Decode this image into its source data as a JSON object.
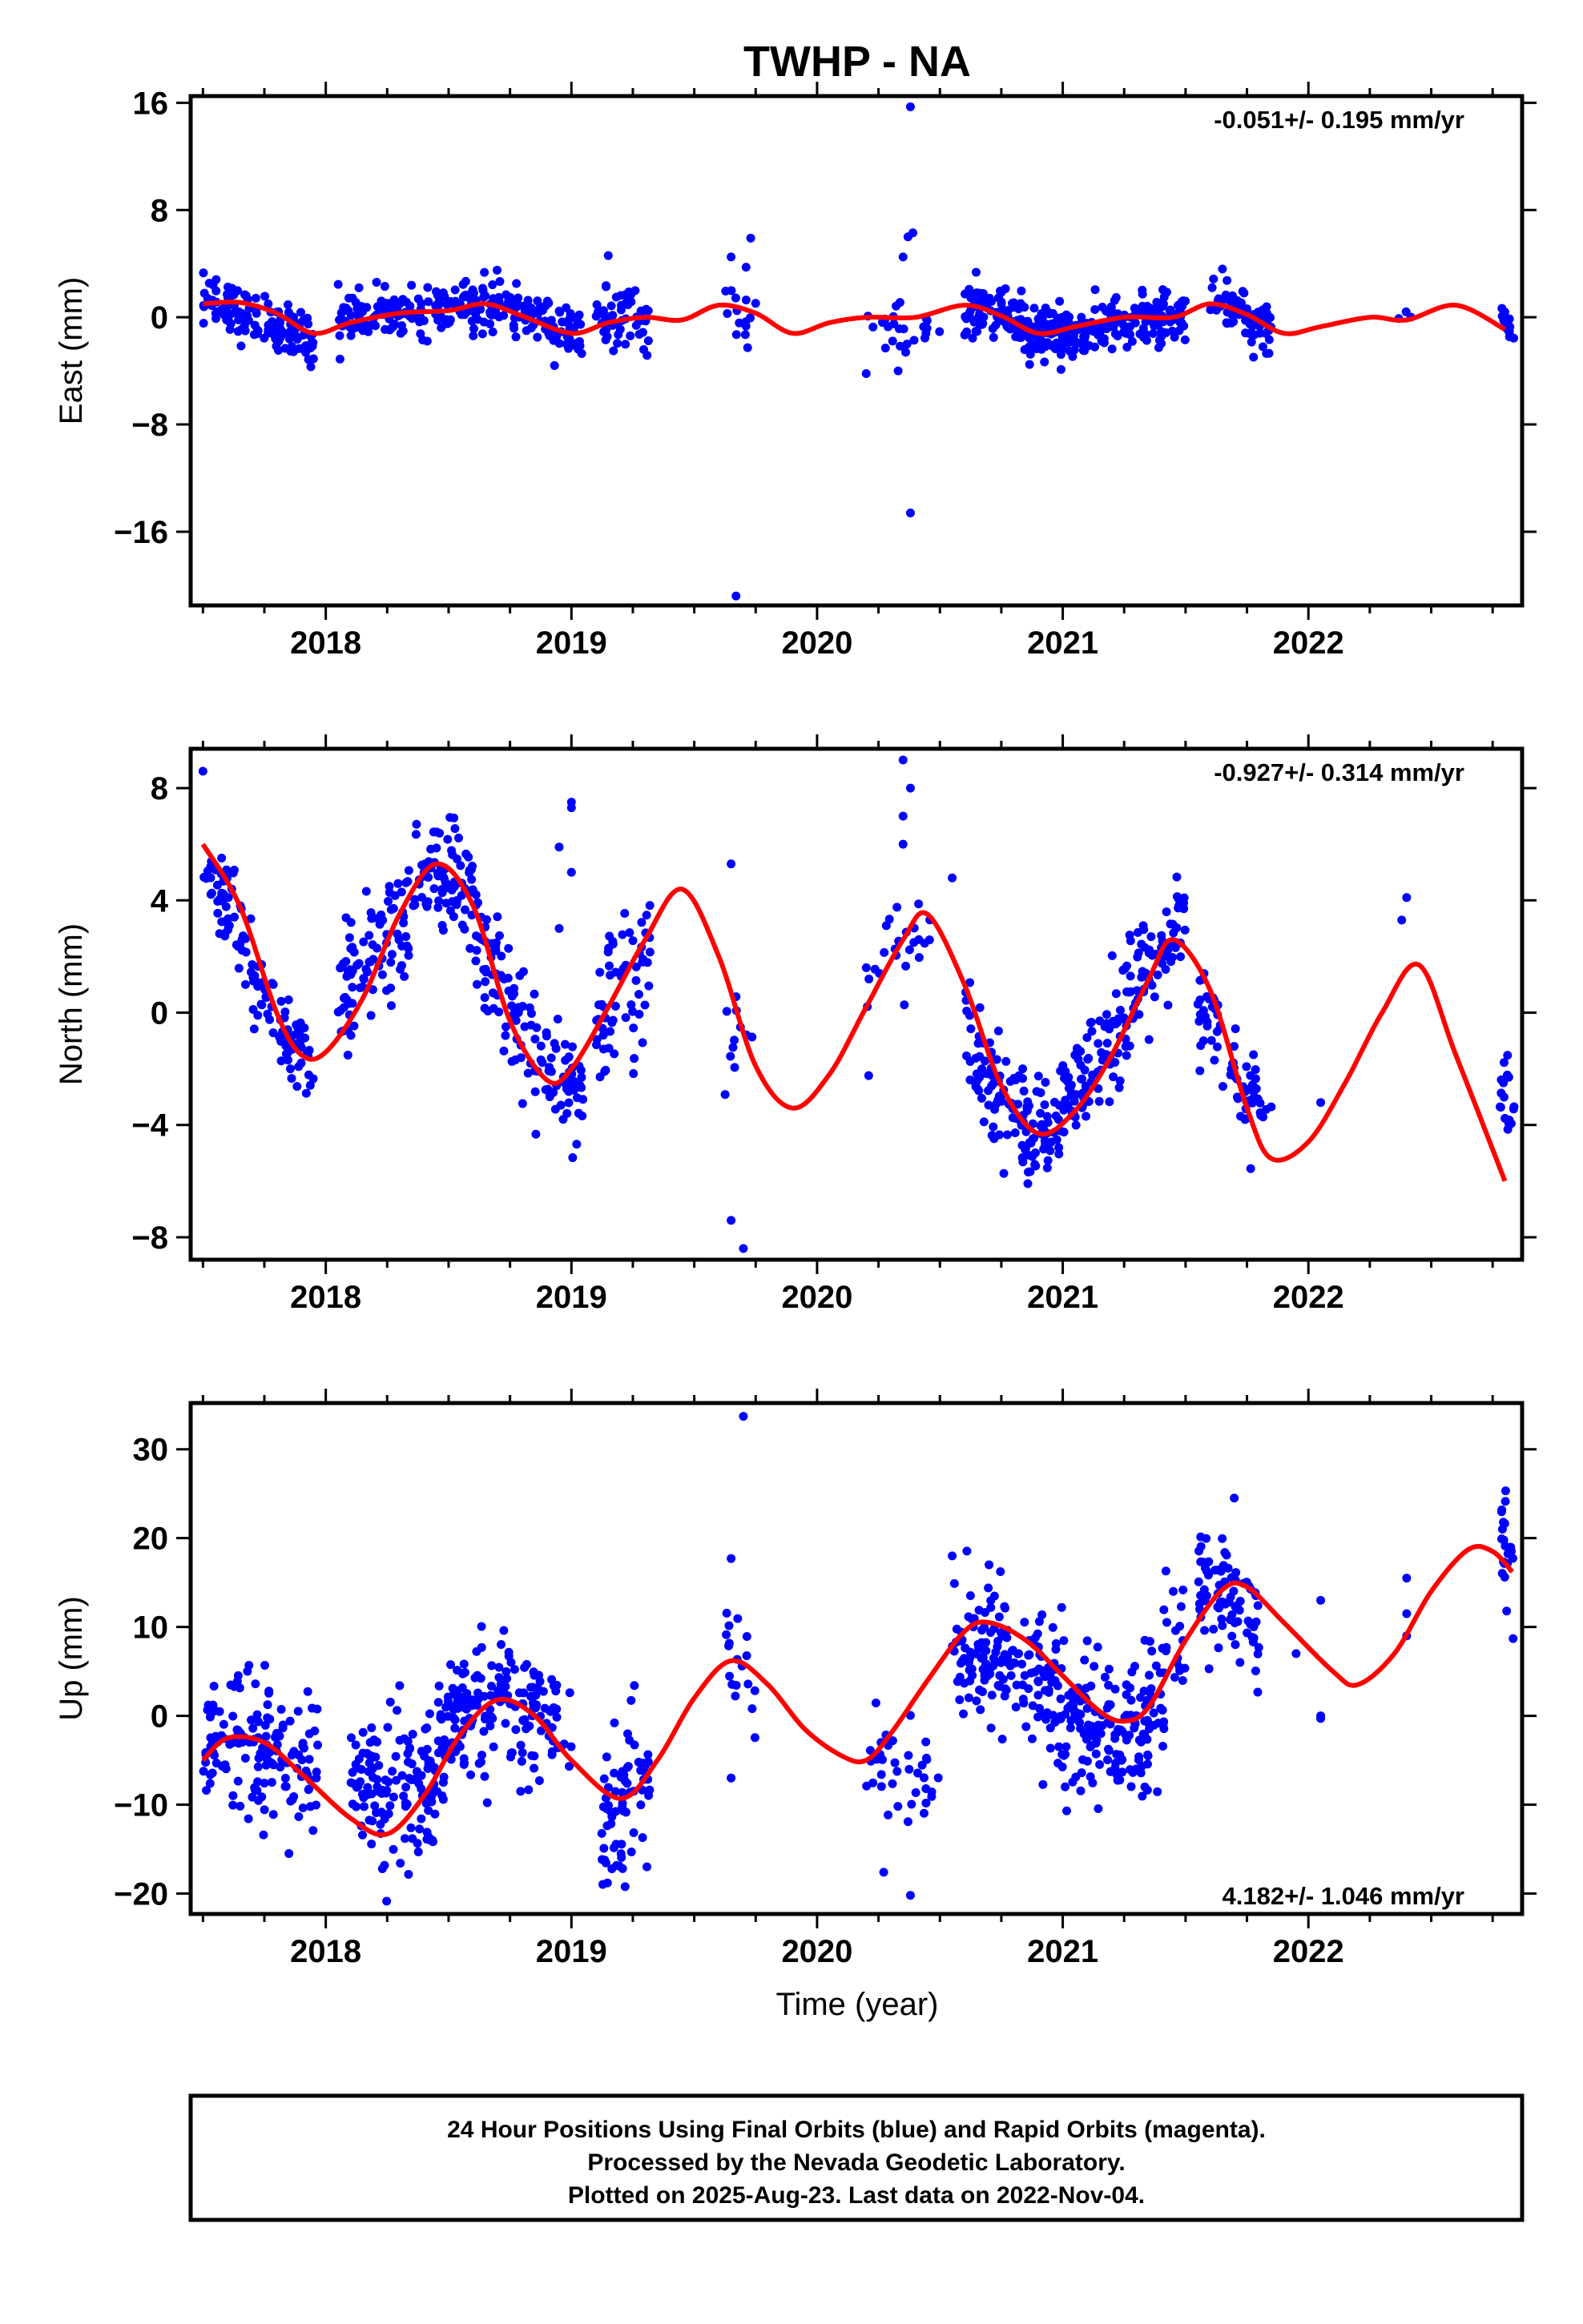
{
  "title": "TWHP - NA",
  "xlabel": "Time (year)",
  "x_ticks": [
    "2018",
    "2019",
    "2020",
    "2021",
    "2022"
  ],
  "footer": {
    "line1": "24 Hour Positions Using Final Orbits (blue) and Rapid Orbits (magenta).",
    "line2": "Processed by the Nevada Geodetic Laboratory.",
    "line3": "Plotted on 2025-Aug-23. Last data on 2022-Nov-04."
  },
  "colors": {
    "points": "#0000ff",
    "fit": "#ff0000",
    "frame": "#000000"
  },
  "chart_data": [
    {
      "type": "scatter",
      "ylabel": "East (mm)",
      "rate_text": "-0.051+/- 0.195 mm/yr",
      "xlim": [
        2017.45,
        2022.87
      ],
      "ylim": [
        -21.5,
        16.5
      ],
      "yticks": [
        16,
        8,
        0,
        -8,
        -16
      ],
      "ytick_labels": [
        "16",
        "8",
        "0",
        "−8",
        "−16"
      ],
      "fit": [
        [
          2017.5,
          1.0
        ],
        [
          2017.65,
          1.1
        ],
        [
          2017.8,
          0.3
        ],
        [
          2017.95,
          -1.2
        ],
        [
          2018.1,
          -0.4
        ],
        [
          2018.3,
          0.3
        ],
        [
          2018.5,
          0.5
        ],
        [
          2018.65,
          1.0
        ],
        [
          2018.8,
          0.1
        ],
        [
          2019.0,
          -1.2
        ],
        [
          2019.15,
          -0.4
        ],
        [
          2019.3,
          0.0
        ],
        [
          2019.45,
          -0.2
        ],
        [
          2019.6,
          0.9
        ],
        [
          2019.75,
          0.3
        ],
        [
          2019.9,
          -1.2
        ],
        [
          2020.05,
          -0.4
        ],
        [
          2020.2,
          0.0
        ],
        [
          2020.4,
          0.0
        ],
        [
          2020.6,
          0.9
        ],
        [
          2020.75,
          0.1
        ],
        [
          2020.9,
          -1.2
        ],
        [
          2021.05,
          -0.7
        ],
        [
          2021.25,
          0.0
        ],
        [
          2021.45,
          0.0
        ],
        [
          2021.6,
          1.0
        ],
        [
          2021.75,
          0.2
        ],
        [
          2021.9,
          -1.2
        ],
        [
          2022.05,
          -0.7
        ],
        [
          2022.25,
          0.0
        ],
        [
          2022.4,
          -0.2
        ],
        [
          2022.6,
          0.9
        ],
        [
          2022.8,
          -0.9
        ]
      ],
      "outliers": [
        [
          2020.38,
          15.7
        ],
        [
          2020.38,
          -14.6
        ],
        [
          2019.67,
          -20.8
        ],
        [
          2020.37,
          6.0
        ],
        [
          2020.39,
          6.3
        ],
        [
          2020.35,
          4.5
        ],
        [
          2019.73,
          5.9
        ],
        [
          2019.65,
          4.5
        ],
        [
          2019.15,
          4.6
        ],
        [
          2020.33,
          -4.0
        ],
        [
          2020.2,
          -4.2
        ],
        [
          2017.95,
          -3.1
        ],
        [
          2021.65,
          3.6
        ]
      ],
      "clusters": [
        {
          "x0": 2017.5,
          "x1": 2017.95,
          "n": 130,
          "c0": 1.2,
          "c1": -1.5,
          "s": 1.0
        },
        {
          "x0": 2018.05,
          "x1": 2018.75,
          "n": 180,
          "c0": 0.0,
          "c1": 1.0,
          "s": 0.9
        },
        {
          "x0": 2018.75,
          "x1": 2019.05,
          "n": 80,
          "c0": 0.5,
          "c1": -1.5,
          "s": 1.0
        },
        {
          "x0": 2019.1,
          "x1": 2019.32,
          "n": 60,
          "c0": 0.0,
          "c1": -0.3,
          "s": 1.0
        },
        {
          "x0": 2019.62,
          "x1": 2019.75,
          "n": 15,
          "c0": 1.0,
          "c1": 0.0,
          "s": 1.8
        },
        {
          "x0": 2020.2,
          "x1": 2020.5,
          "n": 25,
          "c0": -0.5,
          "c1": -1.0,
          "s": 1.5
        },
        {
          "x0": 2020.6,
          "x1": 2021.05,
          "n": 190,
          "c0": 0.5,
          "c1": -1.5,
          "s": 1.0
        },
        {
          "x0": 2021.05,
          "x1": 2021.5,
          "n": 160,
          "c0": -1.0,
          "c1": 0.2,
          "s": 0.9
        },
        {
          "x0": 2021.6,
          "x1": 2021.85,
          "n": 80,
          "c0": 1.5,
          "c1": -0.8,
          "s": 1.0
        },
        {
          "x0": 2022.35,
          "x1": 2022.42,
          "n": 3,
          "c0": 0.0,
          "c1": 0.0,
          "s": 0.4
        },
        {
          "x0": 2022.78,
          "x1": 2022.84,
          "n": 14,
          "c0": 0.0,
          "c1": -0.8,
          "s": 0.8
        }
      ]
    },
    {
      "type": "scatter",
      "ylabel": "North (mm)",
      "rate_text": "-0.927+/- 0.314 mm/yr",
      "xlim": [
        2017.45,
        2022.87
      ],
      "ylim": [
        -8.8,
        9.4
      ],
      "yticks": [
        8,
        4,
        0,
        -4,
        -8
      ],
      "ytick_labels": [
        "8",
        "4",
        "0",
        "−4",
        "−8"
      ],
      "fit": [
        [
          2017.5,
          6.0
        ],
        [
          2017.65,
          3.8
        ],
        [
          2017.8,
          0.0
        ],
        [
          2017.9,
          -1.5
        ],
        [
          2018.0,
          -1.4
        ],
        [
          2018.15,
          0.5
        ],
        [
          2018.3,
          3.5
        ],
        [
          2018.45,
          5.3
        ],
        [
          2018.6,
          3.8
        ],
        [
          2018.75,
          -0.3
        ],
        [
          2018.9,
          -2.4
        ],
        [
          2019.0,
          -2.0
        ],
        [
          2019.15,
          0.2
        ],
        [
          2019.3,
          2.6
        ],
        [
          2019.45,
          4.4
        ],
        [
          2019.6,
          2.0
        ],
        [
          2019.75,
          -1.9
        ],
        [
          2019.9,
          -3.4
        ],
        [
          2020.05,
          -2.2
        ],
        [
          2020.2,
          0.2
        ],
        [
          2020.35,
          2.6
        ],
        [
          2020.45,
          3.5
        ],
        [
          2020.6,
          1.0
        ],
        [
          2020.75,
          -2.6
        ],
        [
          2020.9,
          -4.3
        ],
        [
          2021.05,
          -3.5
        ],
        [
          2021.2,
          -1.5
        ],
        [
          2021.35,
          1.2
        ],
        [
          2021.45,
          2.6
        ],
        [
          2021.6,
          0.8
        ],
        [
          2021.75,
          -3.4
        ],
        [
          2021.85,
          -5.2
        ],
        [
          2022.0,
          -4.6
        ],
        [
          2022.15,
          -2.5
        ],
        [
          2022.3,
          0.0
        ],
        [
          2022.45,
          1.7
        ],
        [
          2022.6,
          -1.5
        ],
        [
          2022.8,
          -6.0
        ]
      ],
      "outliers": [
        [
          2017.5,
          8.6
        ],
        [
          2019.0,
          7.5
        ],
        [
          2019.0,
          7.3
        ],
        [
          2018.95,
          5.9
        ],
        [
          2019.0,
          5.0
        ],
        [
          2018.95,
          3.0
        ],
        [
          2019.65,
          5.3
        ],
        [
          2019.65,
          -7.4
        ],
        [
          2019.7,
          -8.4
        ],
        [
          2020.35,
          9.0
        ],
        [
          2020.38,
          8.0
        ],
        [
          2020.35,
          7.0
        ],
        [
          2020.35,
          6.0
        ],
        [
          2020.55,
          4.8
        ],
        [
          2022.4,
          4.1
        ],
        [
          2022.38,
          3.3
        ],
        [
          2022.05,
          -3.2
        ]
      ],
      "clusters": [
        {
          "x0": 2017.5,
          "x1": 2017.7,
          "n": 50,
          "c0": 5.0,
          "c1": 2.5,
          "s": 0.7
        },
        {
          "x0": 2017.7,
          "x1": 2017.95,
          "n": 70,
          "c0": 1.0,
          "c1": -2.5,
          "s": 0.8
        },
        {
          "x0": 2018.05,
          "x1": 2018.35,
          "n": 90,
          "c0": 0.5,
          "c1": 3.5,
          "s": 1.2
        },
        {
          "x0": 2018.35,
          "x1": 2018.6,
          "n": 80,
          "c0": 5.0,
          "c1": 4.5,
          "s": 1.0
        },
        {
          "x0": 2018.6,
          "x1": 2018.85,
          "n": 70,
          "c0": 3.0,
          "c1": -1.5,
          "s": 1.0
        },
        {
          "x0": 2018.85,
          "x1": 2019.05,
          "n": 60,
          "c0": -2.0,
          "c1": -3.0,
          "s": 1.0
        },
        {
          "x0": 2019.1,
          "x1": 2019.32,
          "n": 60,
          "c0": -0.5,
          "c1": 2.0,
          "s": 1.3
        },
        {
          "x0": 2019.62,
          "x1": 2019.75,
          "n": 12,
          "c0": 0.0,
          "c1": -2.0,
          "s": 1.0
        },
        {
          "x0": 2020.2,
          "x1": 2020.5,
          "n": 25,
          "c0": 1.0,
          "c1": 3.5,
          "s": 1.0
        },
        {
          "x0": 2020.6,
          "x1": 2020.85,
          "n": 80,
          "c0": -1.0,
          "c1": -3.8,
          "s": 1.0
        },
        {
          "x0": 2020.85,
          "x1": 2021.05,
          "n": 70,
          "c0": -4.5,
          "c1": -3.5,
          "s": 1.0
        },
        {
          "x0": 2021.05,
          "x1": 2021.3,
          "n": 80,
          "c0": -2.5,
          "c1": 0.5,
          "s": 1.0
        },
        {
          "x0": 2021.3,
          "x1": 2021.5,
          "n": 60,
          "c0": 1.0,
          "c1": 3.0,
          "s": 1.0
        },
        {
          "x0": 2021.55,
          "x1": 2021.78,
          "n": 60,
          "c0": 0.5,
          "c1": -3.5,
          "s": 1.0
        },
        {
          "x0": 2021.78,
          "x1": 2021.85,
          "n": 10,
          "c0": -2.5,
          "c1": -4.0,
          "s": 0.5
        },
        {
          "x0": 2022.78,
          "x1": 2022.84,
          "n": 18,
          "c0": -2.5,
          "c1": -4.0,
          "s": 0.7
        }
      ]
    },
    {
      "type": "scatter",
      "ylabel": "Up (mm)",
      "rate_text": "4.182+/- 1.046 mm/yr",
      "xlim": [
        2017.45,
        2022.87
      ],
      "ylim": [
        -22.3,
        35.2
      ],
      "yticks": [
        30,
        20,
        10,
        0,
        -10,
        -20
      ],
      "ytick_labels": [
        "30",
        "20",
        "10",
        "0",
        "−10",
        "−20"
      ],
      "fit": [
        [
          2017.5,
          -5.0
        ],
        [
          2017.6,
          -2.5
        ],
        [
          2017.75,
          -3.0
        ],
        [
          2017.9,
          -6.5
        ],
        [
          2018.1,
          -11.5
        ],
        [
          2018.25,
          -13.3
        ],
        [
          2018.4,
          -9.0
        ],
        [
          2018.55,
          -2.0
        ],
        [
          2018.7,
          1.8
        ],
        [
          2018.85,
          0.0
        ],
        [
          2019.0,
          -5.0
        ],
        [
          2019.2,
          -9.3
        ],
        [
          2019.35,
          -5.0
        ],
        [
          2019.5,
          2.0
        ],
        [
          2019.65,
          6.2
        ],
        [
          2019.8,
          3.5
        ],
        [
          2019.95,
          -1.5
        ],
        [
          2020.1,
          -4.5
        ],
        [
          2020.2,
          -5.0
        ],
        [
          2020.3,
          -2.0
        ],
        [
          2020.45,
          4.0
        ],
        [
          2020.6,
          9.5
        ],
        [
          2020.7,
          10.5
        ],
        [
          2020.85,
          8.5
        ],
        [
          2021.0,
          4.5
        ],
        [
          2021.15,
          0.5
        ],
        [
          2021.25,
          -0.6
        ],
        [
          2021.35,
          1.0
        ],
        [
          2021.5,
          8.5
        ],
        [
          2021.65,
          14.2
        ],
        [
          2021.75,
          14.5
        ],
        [
          2021.9,
          10.5
        ],
        [
          2022.1,
          5.0
        ],
        [
          2022.2,
          3.5
        ],
        [
          2022.35,
          7.0
        ],
        [
          2022.5,
          14.0
        ],
        [
          2022.65,
          18.7
        ],
        [
          2022.75,
          18.5
        ],
        [
          2022.83,
          16.2
        ]
      ],
      "outliers": [
        [
          2019.7,
          33.7
        ],
        [
          2020.38,
          -20.2
        ],
        [
          2019.65,
          17.7
        ],
        [
          2020.55,
          18.0
        ],
        [
          2020.7,
          17.0
        ],
        [
          2021.42,
          16.3
        ],
        [
          2021.45,
          14.0
        ],
        [
          2022.05,
          13.0
        ],
        [
          2022.05,
          0.0
        ],
        [
          2022.05,
          -0.3
        ],
        [
          2022.4,
          15.5
        ],
        [
          2022.4,
          11.5
        ],
        [
          2022.4,
          9.0
        ],
        [
          2021.95,
          7.0
        ],
        [
          2017.85,
          -15.5
        ],
        [
          2019.65,
          -7.0
        ]
      ],
      "clusters": [
        {
          "x0": 2017.5,
          "x1": 2017.97,
          "n": 150,
          "c0": -3.0,
          "c1": -5.0,
          "s": 4.5
        },
        {
          "x0": 2018.1,
          "x1": 2018.45,
          "n": 140,
          "c0": -8.0,
          "c1": -10.0,
          "s": 4.0
        },
        {
          "x0": 2018.45,
          "x1": 2018.75,
          "n": 120,
          "c0": -3.0,
          "c1": 4.0,
          "s": 3.5
        },
        {
          "x0": 2018.75,
          "x1": 2019.0,
          "n": 70,
          "c0": 3.0,
          "c1": -3.0,
          "s": 4.0
        },
        {
          "x0": 2019.12,
          "x1": 2019.32,
          "n": 70,
          "c0": -12.0,
          "c1": -6.0,
          "s": 4.0
        },
        {
          "x0": 2019.62,
          "x1": 2019.75,
          "n": 18,
          "c0": 7.0,
          "c1": 4.0,
          "s": 4.0
        },
        {
          "x0": 2020.2,
          "x1": 2020.5,
          "n": 40,
          "c0": -6.0,
          "c1": -5.0,
          "s": 3.5
        },
        {
          "x0": 2020.55,
          "x1": 2020.85,
          "n": 110,
          "c0": 8.0,
          "c1": 6.0,
          "s": 4.0
        },
        {
          "x0": 2020.85,
          "x1": 2021.1,
          "n": 100,
          "c0": 4.0,
          "c1": 0.0,
          "s": 4.0
        },
        {
          "x0": 2021.1,
          "x1": 2021.35,
          "n": 100,
          "c0": -2.0,
          "c1": -2.0,
          "s": 4.0
        },
        {
          "x0": 2021.35,
          "x1": 2021.5,
          "n": 40,
          "c0": 1.0,
          "c1": 8.0,
          "s": 4.0
        },
        {
          "x0": 2021.55,
          "x1": 2021.8,
          "n": 80,
          "c0": 15.0,
          "c1": 10.0,
          "s": 3.5
        },
        {
          "x0": 2022.78,
          "x1": 2022.84,
          "n": 22,
          "c0": 20.0,
          "c1": 17.0,
          "s": 4.0
        }
      ]
    }
  ]
}
